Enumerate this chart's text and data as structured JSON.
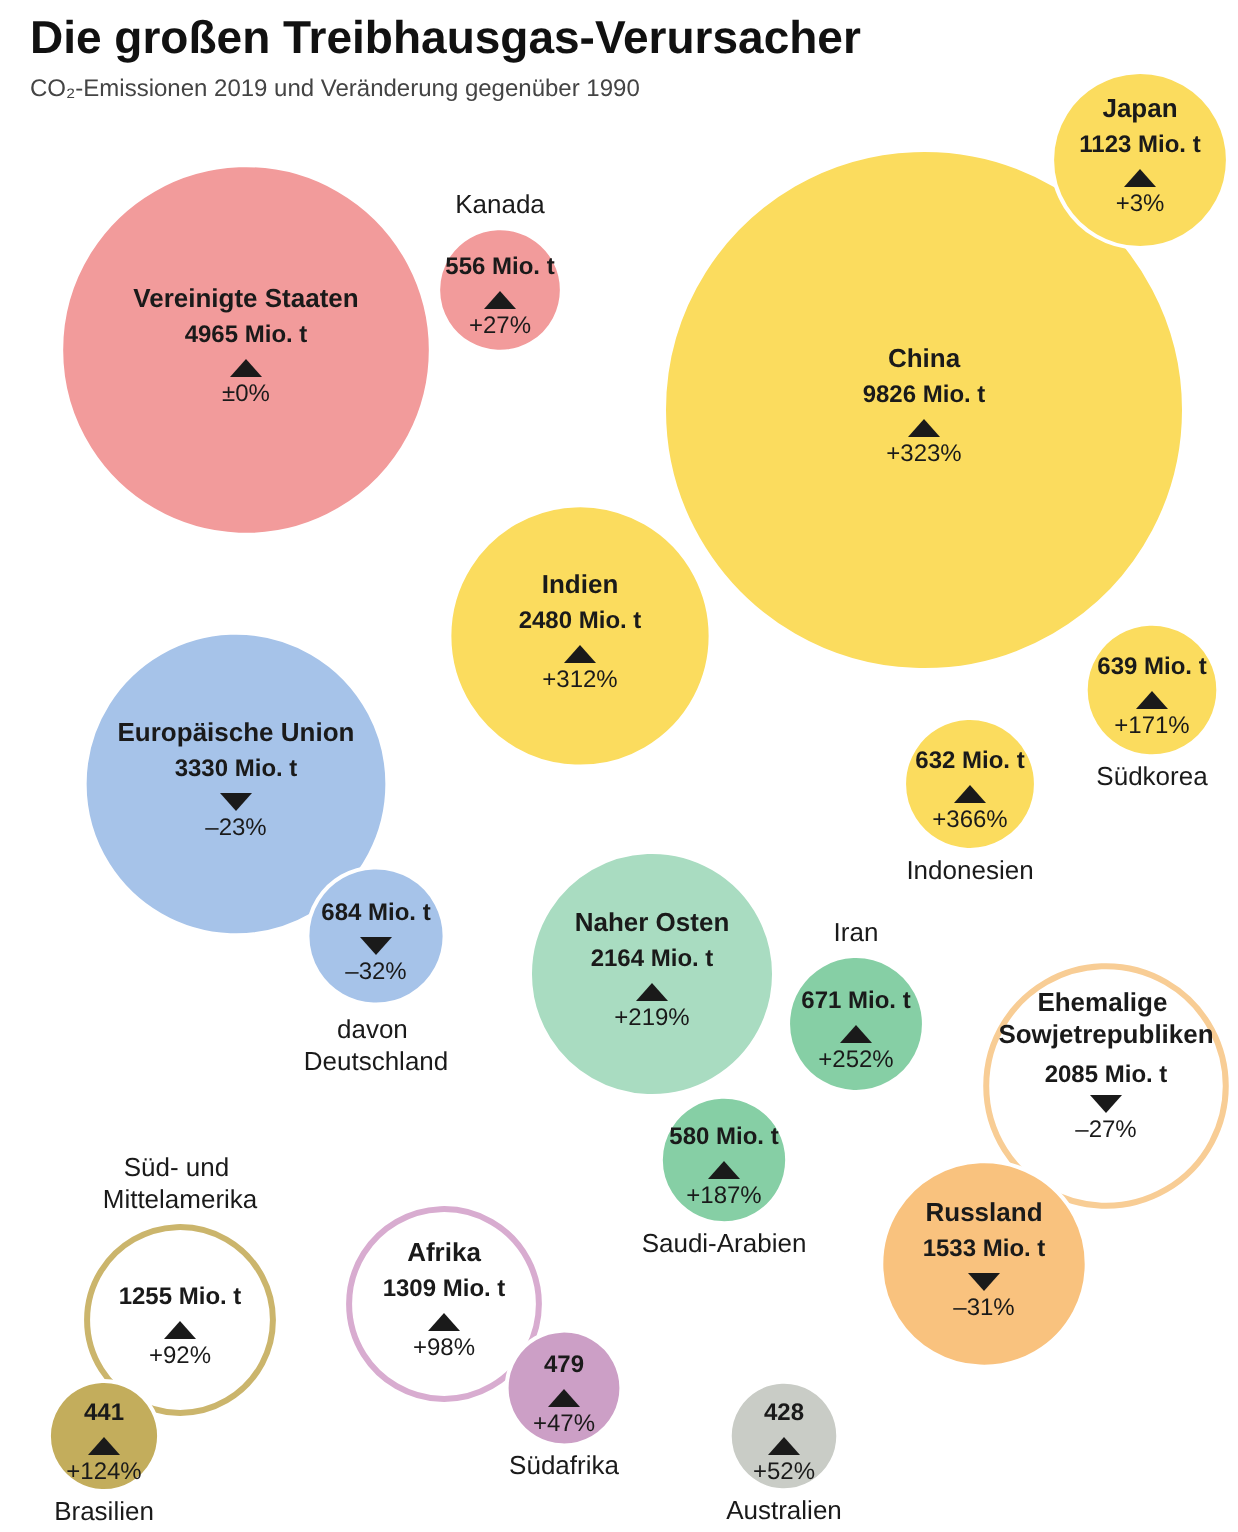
{
  "chart_data": {
    "type": "other",
    "title": "Die großen Treibhausgas-Verursacher",
    "subtitle": "CO₂-Emissionen 2019 und Veränderung gegenüber 1990",
    "categories": [
      "Vereinigte Staaten",
      "Kanada",
      "China",
      "Japan",
      "Indien",
      "Südkorea",
      "Indonesien",
      "Europäische Union",
      "davon Deutschland",
      "Naher Osten",
      "Iran",
      "Saudi-Arabien",
      "Ehemalige Sowjetrepubliken",
      "Russland",
      "Süd- und Mittelamerika",
      "Brasilien",
      "Afrika",
      "Südafrika",
      "Australien"
    ],
    "series": [
      {
        "values": [
          4965,
          556,
          9826,
          1123,
          2480,
          639,
          632,
          3330,
          684,
          2164,
          671,
          580,
          2085,
          1533,
          1255,
          441,
          1309,
          479,
          428
        ],
        "colors": [
          "#f29b9b",
          "#f29b9b",
          "#fbdc5e",
          "#fbdc5e",
          "#fbdc5e",
          "#fbdc5e",
          "#fbdc5e",
          "#a6c3e9",
          "#a6c3e9",
          "#a9dcc1",
          "#86cfa5",
          "#86cfa5",
          "#f8cd95",
          "#f9c27e",
          "#cbb56c",
          "#c3ad5c",
          "#d8acd0",
          "#cc9fc6",
          "#c9ccc6"
        ],
        "value_labels": [
          "4965 Mio. t",
          "556 Mio. t",
          "9826 Mio. t",
          "1123 Mio. t",
          "2480 Mio. t",
          "639 Mio. t",
          "632 Mio. t",
          "3330 Mio. t",
          "684 Mio. t",
          "2164 Mio. t",
          "671 Mio. t",
          "580 Mio. t",
          "2085 Mio. t",
          "1533 Mio. t",
          "1255 Mio. t",
          "441",
          "1309 Mio. t",
          "479",
          "428"
        ]
      },
      {
        "color": "#1a1a1a",
        "values": [
          0,
          27,
          323,
          3,
          312,
          171,
          366,
          -23,
          -32,
          219,
          252,
          187,
          -27,
          -31,
          92,
          124,
          98,
          47,
          52
        ],
        "value_labels": [
          "±0%",
          "+27%",
          "+323%",
          "+3%",
          "+312%",
          "+171%",
          "+366%",
          "–23%",
          "–32%",
          "+219%",
          "+252%",
          "+187%",
          "–27%",
          "–31%",
          "+92%",
          "+124%",
          "+98%",
          "+47%",
          "+52%"
        ]
      }
    ]
  }
}
